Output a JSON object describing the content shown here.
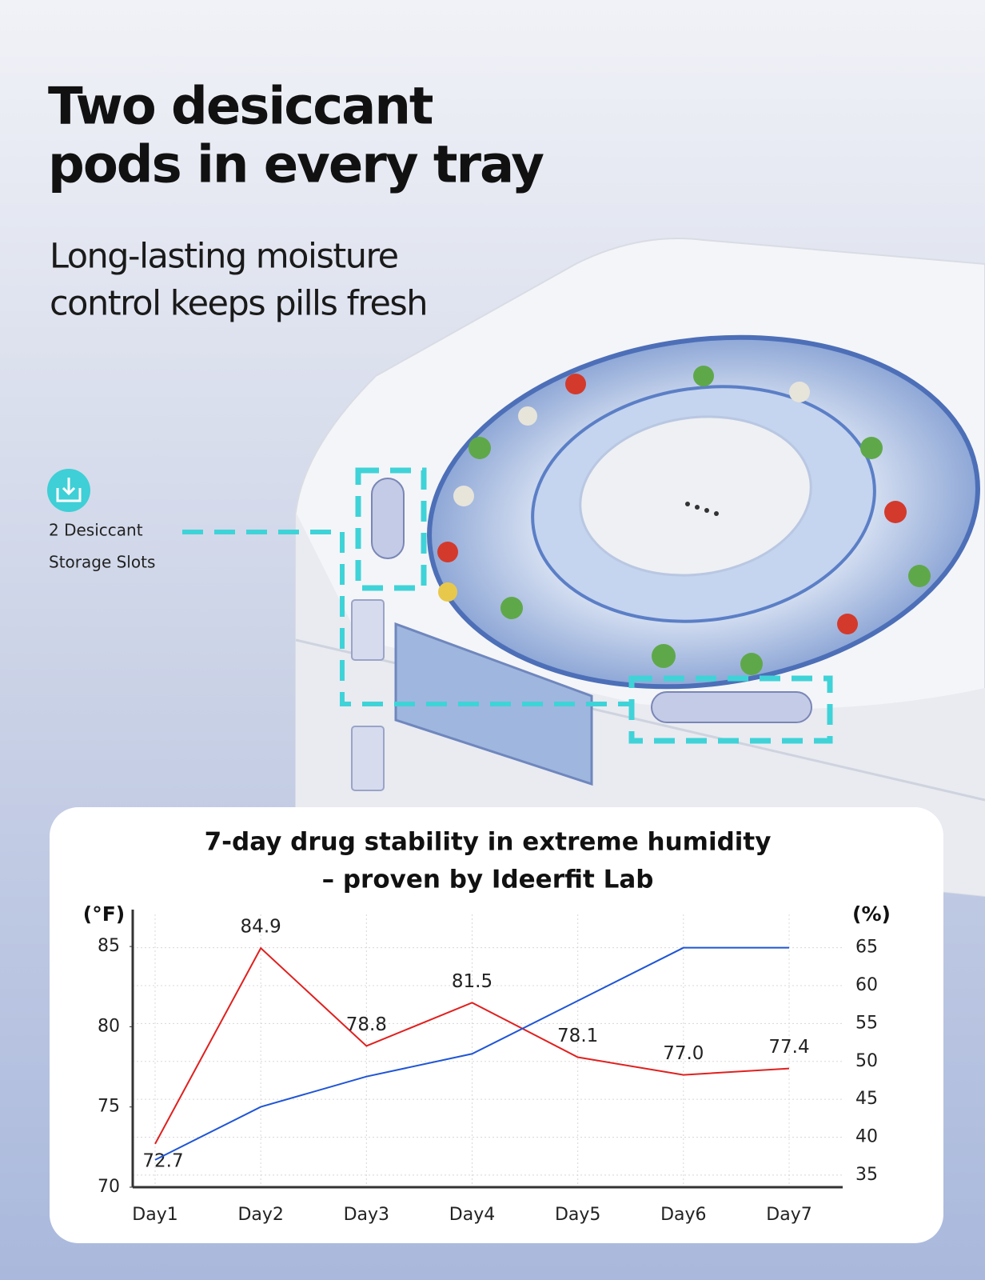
{
  "header": {
    "title_lines": [
      "Two desiccant",
      "pods in every tray"
    ],
    "subtitle_lines": [
      "Long-lasting moisture",
      "control keeps pills fresh"
    ]
  },
  "callout": {
    "lines": [
      "2 Desiccant",
      "Storage Slots"
    ]
  },
  "chart_data": {
    "type": "line",
    "title": [
      "7-day drug stability in extreme humidity",
      "– proven by Ideerfit Lab"
    ],
    "ylabel": "(°F)",
    "y2label": "(%)",
    "categories": [
      "Day1",
      "Day2",
      "Day3",
      "Day4",
      "Day5",
      "Day6",
      "Day7"
    ],
    "series": [
      {
        "color": "#e0201e",
        "values": [
          72.7,
          84.9,
          78.8,
          81.5,
          78.1,
          77.0,
          77.4
        ],
        "value_labels": [
          "72.7",
          "84.9",
          "78.8",
          "81.5",
          "78.1",
          "77.0",
          "77.4"
        ]
      },
      {
        "color": "#1f55d6",
        "axis": "y2",
        "values": [
          37,
          44,
          48,
          51,
          58,
          65,
          65
        ]
      }
    ],
    "ylim": [
      70,
      87
    ],
    "yticks": [
      70,
      75,
      80,
      85
    ],
    "y2lim": [
      33.4,
      69.4
    ],
    "y2ticks": [
      35,
      40,
      45,
      50,
      55,
      60,
      65
    ],
    "grid": true
  }
}
